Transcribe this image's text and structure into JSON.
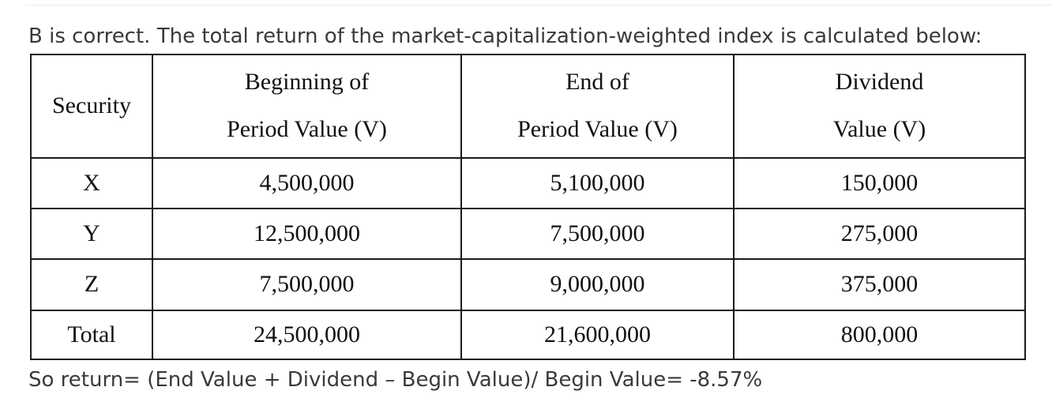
{
  "intro_text": "B is correct. The total return of the market-capitalization-weighted index is calculated below:",
  "table": {
    "headers": [
      {
        "line1": "Security",
        "line2": ""
      },
      {
        "line1": "Beginning of",
        "line2": "Period Value (V)"
      },
      {
        "line1": "End of",
        "line2": "Period Value (V)"
      },
      {
        "line1": "Dividend",
        "line2": "Value (V)"
      }
    ],
    "rows": [
      {
        "security": "X",
        "begin": "4,500,000",
        "end": "5,100,000",
        "dividend": "150,000"
      },
      {
        "security": "Y",
        "begin": "12,500,000",
        "end": "7,500,000",
        "dividend": "275,000"
      },
      {
        "security": "Z",
        "begin": "7,500,000",
        "end": "9,000,000",
        "dividend": "375,000"
      },
      {
        "security": "Total",
        "begin": "24,500,000",
        "end": "21,600,000",
        "dividend": "800,000"
      }
    ]
  },
  "outro_text": "So return= (End Value + Dividend – Begin Value)/ Begin Value= -8.57%"
}
